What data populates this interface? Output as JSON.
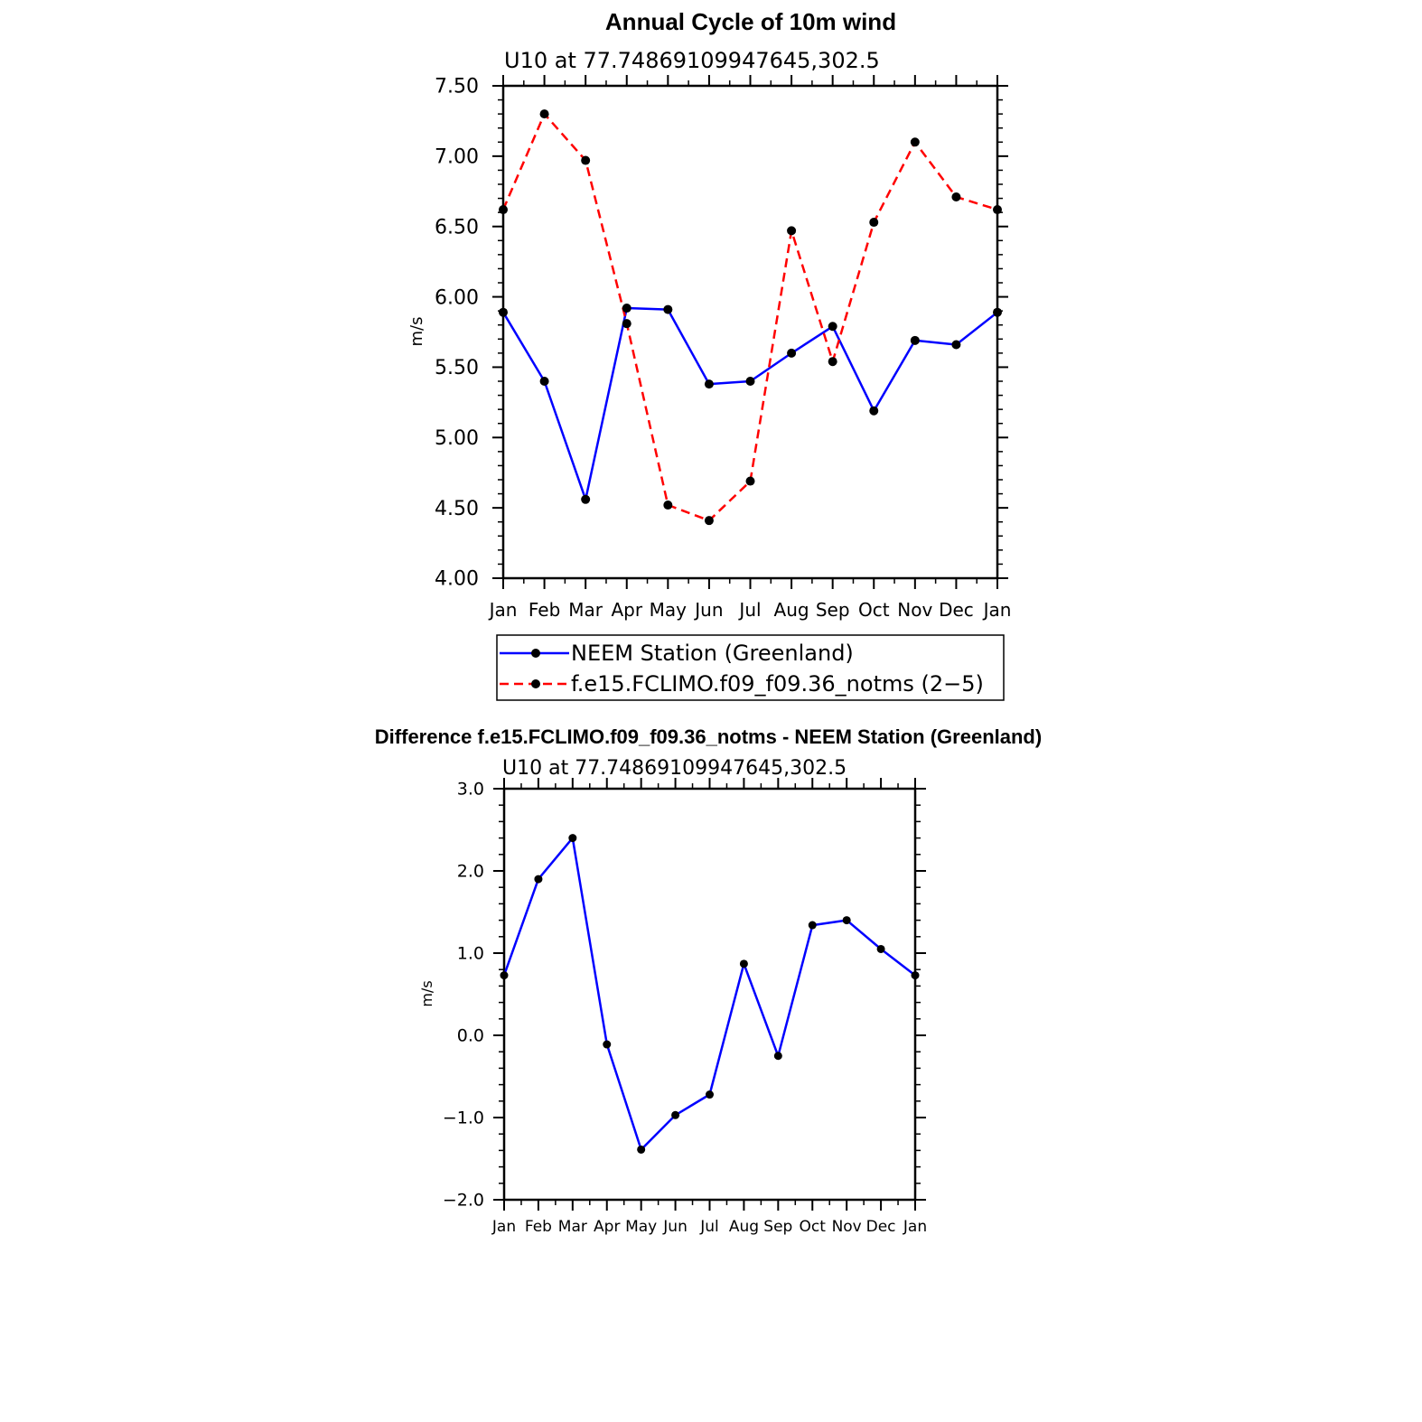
{
  "chart_data": [
    {
      "type": "line",
      "title": "Annual Cycle of 10m wind",
      "subtitle": "U10  at  77.74869109947645,302.5",
      "xlabel": "",
      "ylabel": "m/s",
      "categories": [
        "Jan",
        "Feb",
        "Mar",
        "Apr",
        "May",
        "Jun",
        "Jul",
        "Aug",
        "Sep",
        "Oct",
        "Nov",
        "Dec",
        "Jan"
      ],
      "ylim": [
        4.0,
        7.5
      ],
      "yticks": [
        4.0,
        4.5,
        5.0,
        5.5,
        6.0,
        6.5,
        7.0,
        7.5
      ],
      "ytick_labels": [
        "4.00",
        "4.50",
        "5.00",
        "5.50",
        "6.00",
        "6.50",
        "7.00",
        "7.50"
      ],
      "series": [
        {
          "name": "NEEM Station (Greenland)",
          "color": "#0000ff",
          "dash": "solid",
          "values": [
            5.89,
            5.4,
            4.56,
            5.92,
            5.91,
            5.38,
            5.4,
            5.6,
            5.79,
            5.19,
            5.69,
            5.66,
            5.89
          ]
        },
        {
          "name": "f.e15.FCLIMO.f09_f09.36_notms (2−5)",
          "color": "#ff0000",
          "dash": "dashed",
          "values": [
            6.62,
            7.3,
            6.97,
            5.81,
            4.52,
            4.41,
            4.69,
            6.47,
            5.54,
            6.53,
            7.1,
            6.71,
            6.62
          ]
        }
      ],
      "legend": "below"
    },
    {
      "type": "line",
      "title": "Difference f.e15.FCLIMO.f09_f09.36_notms - NEEM Station (Greenland)",
      "subtitle": "U10  at  77.74869109947645,302.5",
      "xlabel": "",
      "ylabel": "m/s",
      "categories": [
        "Jan",
        "Feb",
        "Mar",
        "Apr",
        "May",
        "Jun",
        "Jul",
        "Aug",
        "Sep",
        "Oct",
        "Nov",
        "Dec",
        "Jan"
      ],
      "ylim": [
        -2.0,
        3.0
      ],
      "yticks": [
        -2.0,
        -1.0,
        0.0,
        1.0,
        2.0,
        3.0
      ],
      "ytick_labels": [
        "−2.0",
        "−1.0",
        "0.0",
        "1.0",
        "2.0",
        "3.0"
      ],
      "series": [
        {
          "name": "Difference",
          "color": "#0000ff",
          "dash": "solid",
          "values": [
            0.73,
            1.9,
            2.4,
            -0.11,
            -1.39,
            -0.97,
            -0.72,
            0.87,
            -0.25,
            1.34,
            1.4,
            1.05,
            0.73
          ]
        }
      ]
    }
  ]
}
